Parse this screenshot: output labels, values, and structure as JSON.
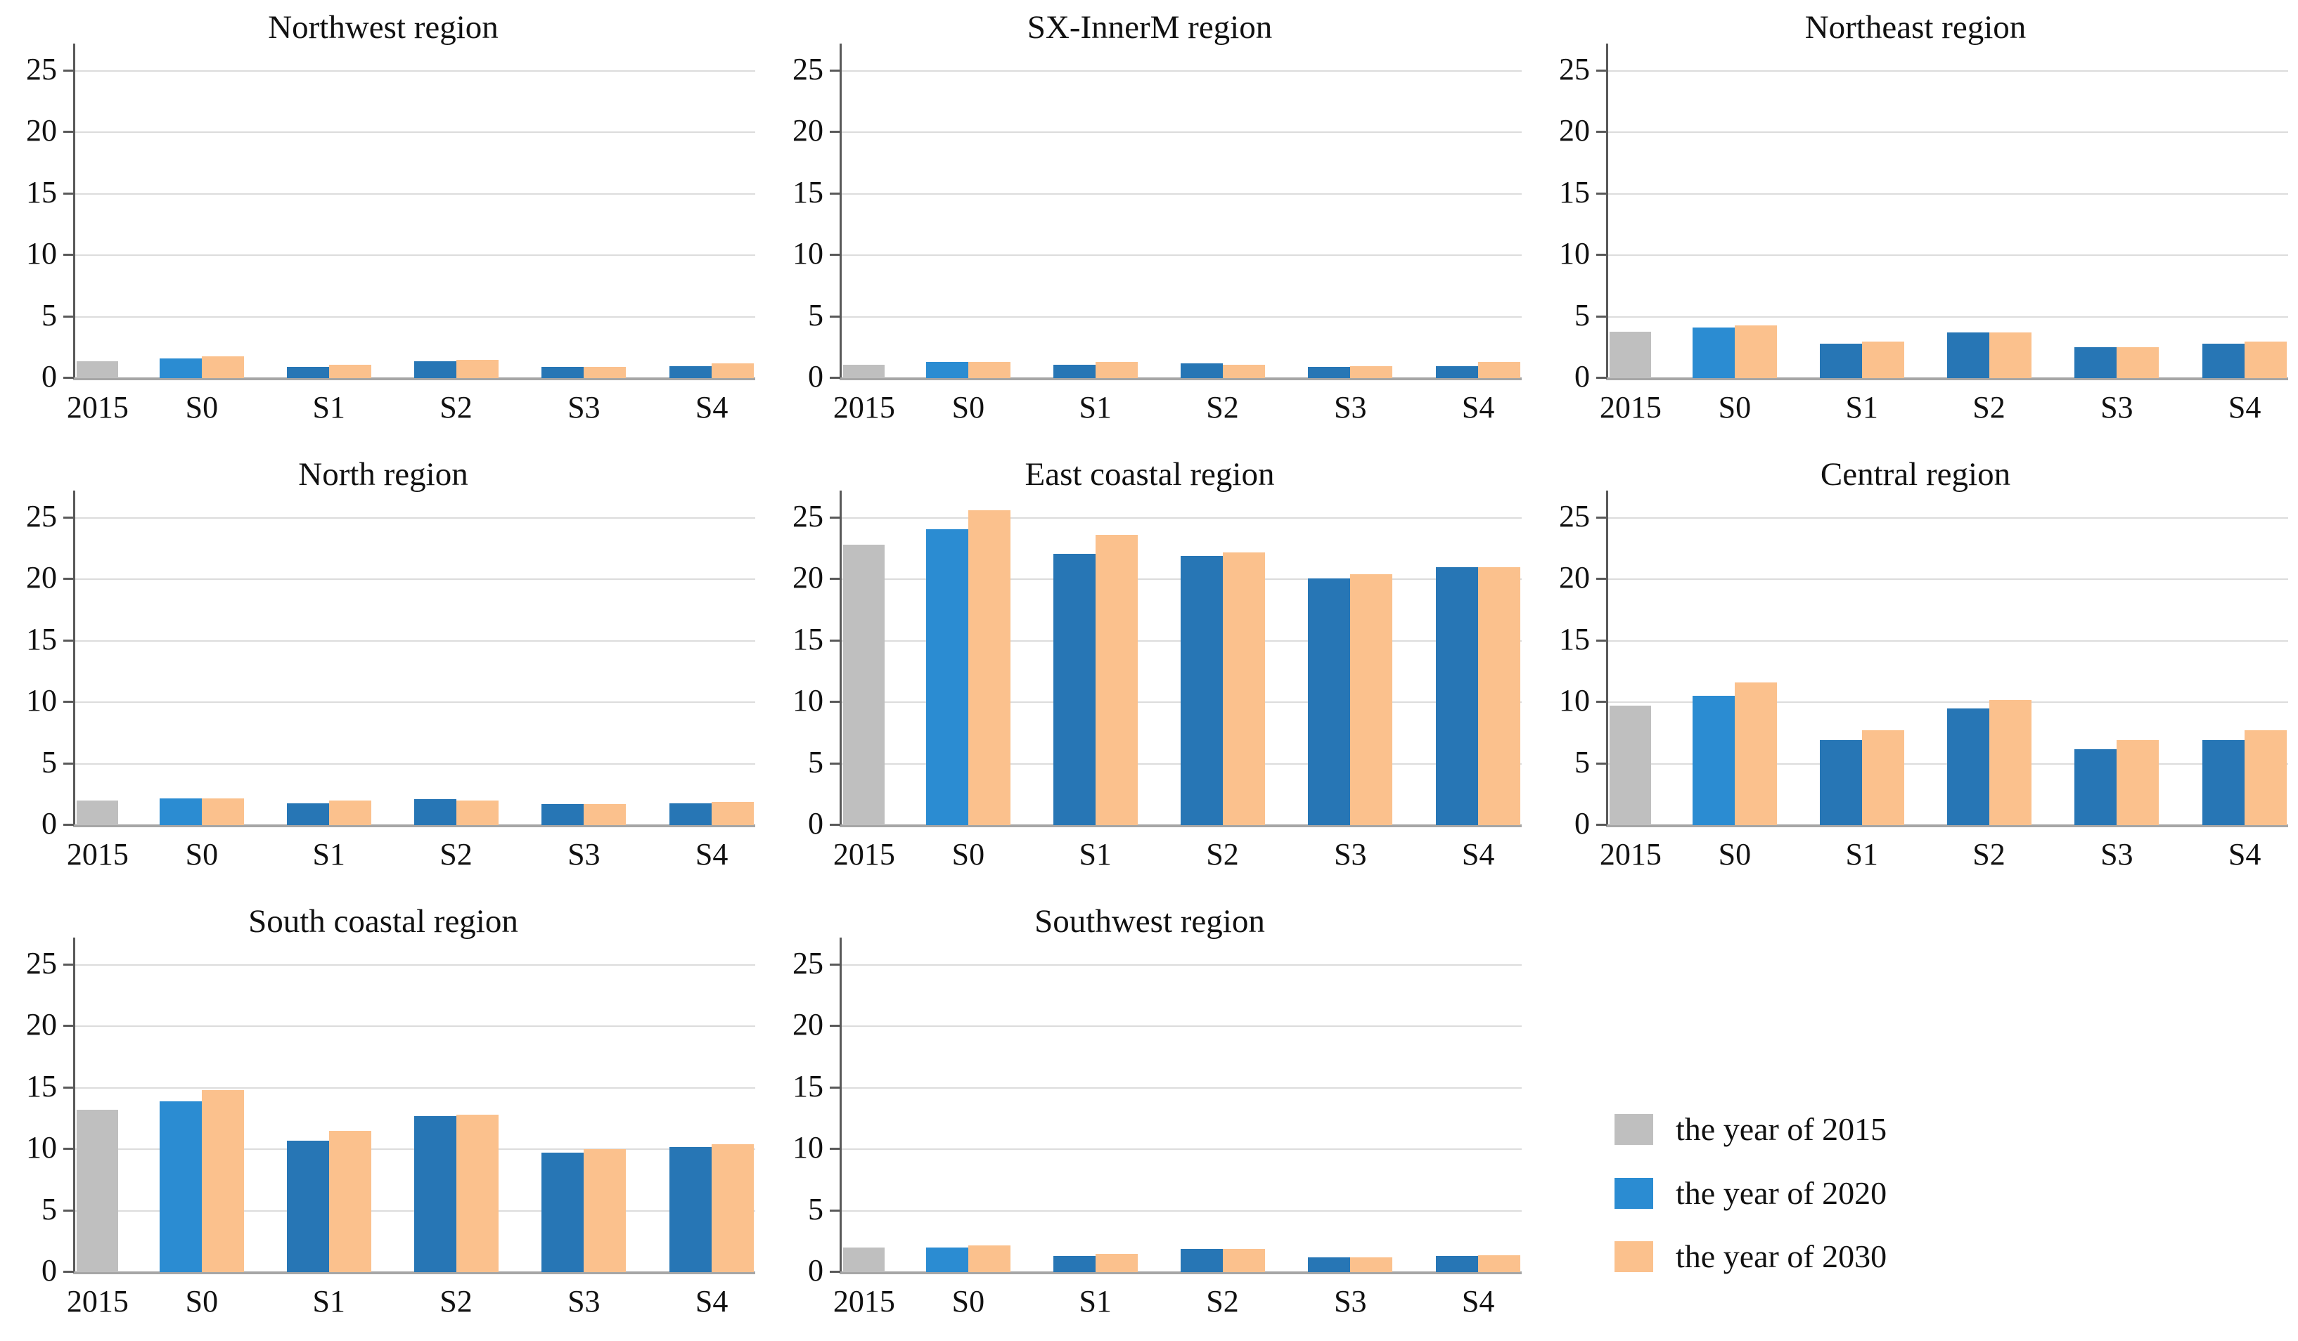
{
  "colors": {
    "year2015": "#BFBFBF",
    "year2020": "#2B8CD2",
    "year2020_dark": "#2776B5",
    "year2030": "#FBC18D",
    "gridline": "#DCDCDC",
    "axis_line": "#595959",
    "baseline": "#A6A6A6",
    "text": "#111111"
  },
  "axis": {
    "ticks": [
      0,
      5,
      10,
      15,
      20,
      25
    ],
    "max": 27
  },
  "legend": {
    "items": [
      {
        "label": "the year of 2015",
        "color_key": "year2015"
      },
      {
        "label": "the year of 2020",
        "color_key": "year2020"
      },
      {
        "label": "the year of 2030",
        "color_key": "year2030"
      }
    ]
  },
  "chart_data": [
    {
      "type": "bar",
      "title": "Northwest region",
      "categories": [
        "2015",
        "S0",
        "S1",
        "S2",
        "S3",
        "S4"
      ],
      "series": [
        {
          "name": "the year of 2015",
          "values": [
            1.4,
            null,
            null,
            null,
            null,
            null
          ]
        },
        {
          "name": "the year of 2020",
          "values": [
            null,
            1.6,
            0.9,
            1.4,
            0.9,
            1.0
          ]
        },
        {
          "name": "the year of 2030",
          "values": [
            null,
            1.8,
            1.1,
            1.5,
            0.9,
            1.2
          ]
        }
      ],
      "ylim": [
        0,
        27
      ],
      "grid": true,
      "legend_position": "none"
    },
    {
      "type": "bar",
      "title": "SX-InnerM region",
      "categories": [
        "2015",
        "S0",
        "S1",
        "S2",
        "S3",
        "S4"
      ],
      "series": [
        {
          "name": "the year of 2015",
          "values": [
            1.1,
            null,
            null,
            null,
            null,
            null
          ]
        },
        {
          "name": "the year of 2020",
          "values": [
            null,
            1.3,
            1.1,
            1.2,
            0.9,
            1.0
          ]
        },
        {
          "name": "the year of 2030",
          "values": [
            null,
            1.3,
            1.3,
            1.1,
            1.0,
            1.3
          ]
        }
      ],
      "ylim": [
        0,
        27
      ],
      "grid": true,
      "legend_position": "none"
    },
    {
      "type": "bar",
      "title": "Northeast region",
      "categories": [
        "2015",
        "S0",
        "S1",
        "S2",
        "S3",
        "S4"
      ],
      "series": [
        {
          "name": "the year of 2015",
          "values": [
            3.8,
            null,
            null,
            null,
            null,
            null
          ]
        },
        {
          "name": "the year of 2020",
          "values": [
            null,
            4.1,
            2.8,
            3.7,
            2.5,
            2.8
          ]
        },
        {
          "name": "the year of 2030",
          "values": [
            null,
            4.3,
            3.0,
            3.7,
            2.5,
            3.0
          ]
        }
      ],
      "ylim": [
        0,
        27
      ],
      "grid": true,
      "legend_position": "none"
    },
    {
      "type": "bar",
      "title": "North region",
      "categories": [
        "2015",
        "S0",
        "S1",
        "S2",
        "S3",
        "S4"
      ],
      "series": [
        {
          "name": "the year of 2015",
          "values": [
            2.0,
            null,
            null,
            null,
            null,
            null
          ]
        },
        {
          "name": "the year of 2020",
          "values": [
            null,
            2.2,
            1.8,
            2.1,
            1.7,
            1.8
          ]
        },
        {
          "name": "the year of 2030",
          "values": [
            null,
            2.2,
            2.0,
            2.0,
            1.7,
            1.9
          ]
        }
      ],
      "ylim": [
        0,
        27
      ],
      "grid": true,
      "legend_position": "none"
    },
    {
      "type": "bar",
      "title": "East coastal region",
      "categories": [
        "2015",
        "S0",
        "S1",
        "S2",
        "S3",
        "S4"
      ],
      "series": [
        {
          "name": "the year of 2015",
          "values": [
            22.8,
            null,
            null,
            null,
            null,
            null
          ]
        },
        {
          "name": "the year of 2020",
          "values": [
            null,
            24.1,
            22.1,
            21.9,
            20.1,
            21.0
          ]
        },
        {
          "name": "the year of 2030",
          "values": [
            null,
            25.6,
            23.6,
            22.2,
            20.4,
            21.0
          ]
        }
      ],
      "ylim": [
        0,
        27
      ],
      "grid": true,
      "legend_position": "none"
    },
    {
      "type": "bar",
      "title": "Central region",
      "categories": [
        "2015",
        "S0",
        "S1",
        "S2",
        "S3",
        "S4"
      ],
      "series": [
        {
          "name": "the year of 2015",
          "values": [
            9.7,
            null,
            null,
            null,
            null,
            null
          ]
        },
        {
          "name": "the year of 2020",
          "values": [
            null,
            10.5,
            6.9,
            9.5,
            6.2,
            6.9
          ]
        },
        {
          "name": "the year of 2030",
          "values": [
            null,
            11.6,
            7.7,
            10.2,
            6.9,
            7.7
          ]
        }
      ],
      "ylim": [
        0,
        27
      ],
      "grid": true,
      "legend_position": "none"
    },
    {
      "type": "bar",
      "title": "South coastal region",
      "categories": [
        "2015",
        "S0",
        "S1",
        "S2",
        "S3",
        "S4"
      ],
      "series": [
        {
          "name": "the year of 2015",
          "values": [
            13.2,
            null,
            null,
            null,
            null,
            null
          ]
        },
        {
          "name": "the year of 2020",
          "values": [
            null,
            13.9,
            10.7,
            12.7,
            9.7,
            10.2
          ]
        },
        {
          "name": "the year of 2030",
          "values": [
            null,
            14.8,
            11.5,
            12.8,
            10.0,
            10.4
          ]
        }
      ],
      "ylim": [
        0,
        27
      ],
      "grid": true,
      "legend_position": "none"
    },
    {
      "type": "bar",
      "title": "Southwest region",
      "categories": [
        "2015",
        "S0",
        "S1",
        "S2",
        "S3",
        "S4"
      ],
      "series": [
        {
          "name": "the year of 2015",
          "values": [
            2.0,
            null,
            null,
            null,
            null,
            null
          ]
        },
        {
          "name": "the year of 2020",
          "values": [
            null,
            2.0,
            1.3,
            1.9,
            1.2,
            1.3
          ]
        },
        {
          "name": "the year of 2030",
          "values": [
            null,
            2.2,
            1.5,
            1.9,
            1.2,
            1.4
          ]
        }
      ],
      "ylim": [
        0,
        27
      ],
      "grid": true,
      "legend_position": "none"
    }
  ]
}
